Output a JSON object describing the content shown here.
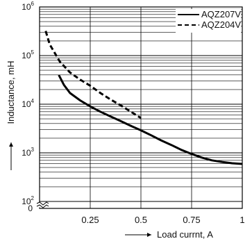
{
  "chart_data": {
    "type": "line",
    "title": "",
    "xlabel": "Load currnt, A",
    "ylabel": "Inductance, mH",
    "xlim": [
      0,
      1
    ],
    "ylim": [
      100,
      1000000
    ],
    "yscale": "log",
    "grid": true,
    "x_ticks": [
      {
        "value": 0.25,
        "label": "0.25"
      },
      {
        "value": 0.5,
        "label": "0.5"
      },
      {
        "value": 0.75,
        "label": "0.75"
      },
      {
        "value": 1,
        "label": "1"
      }
    ],
    "y_ticks": [
      {
        "value": 100,
        "base": "10",
        "exp": "2"
      },
      {
        "value": 1000,
        "base": "10",
        "exp": "3"
      },
      {
        "value": 10000,
        "base": "10",
        "exp": "4"
      },
      {
        "value": 100000,
        "base": "10",
        "exp": "5"
      },
      {
        "value": 1000000,
        "base": "10",
        "exp": "6"
      }
    ],
    "y_zero_label": "0",
    "legend_position": "top-right",
    "series": [
      {
        "name": "AQZ207V",
        "style": "solid",
        "color": "#000000",
        "x": [
          0.095,
          0.12,
          0.15,
          0.2,
          0.25,
          0.3,
          0.35,
          0.4,
          0.45,
          0.5,
          0.55,
          0.6,
          0.65,
          0.7,
          0.75,
          0.8,
          0.85,
          0.9,
          0.95,
          1.0
        ],
        "y": [
          40000,
          25000,
          17000,
          12000,
          9000,
          7000,
          5600,
          4500,
          3600,
          2900,
          2300,
          1800,
          1450,
          1150,
          950,
          800,
          700,
          650,
          610,
          590
        ]
      },
      {
        "name": "AQZ204V",
        "style": "dashed",
        "color": "#000000",
        "x": [
          0.03,
          0.05,
          0.1,
          0.15,
          0.2,
          0.25,
          0.3,
          0.35,
          0.4,
          0.45,
          0.5
        ],
        "y": [
          320000,
          170000,
          75000,
          45000,
          32000,
          24000,
          17000,
          12500,
          9500,
          7000,
          5200
        ]
      }
    ]
  }
}
